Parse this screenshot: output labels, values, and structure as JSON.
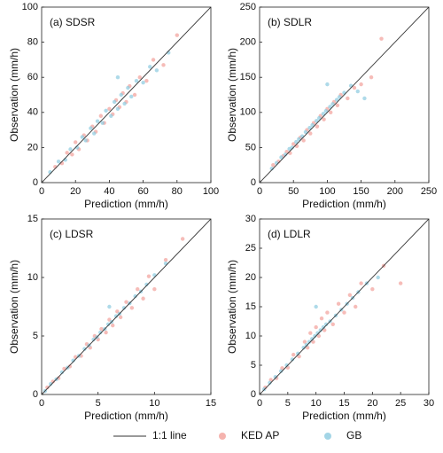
{
  "chart_data": [
    {
      "type": "scatter",
      "title": "(a) SDSR",
      "xlabel": "Prediction (mm/h)",
      "ylabel": "Observation (mm/h)",
      "xlim": [
        0,
        100
      ],
      "ylim": [
        0,
        100
      ],
      "xticks": [
        0,
        20,
        40,
        60,
        80,
        100
      ],
      "yticks": [
        0,
        20,
        40,
        60,
        80,
        100
      ],
      "reference_line": {
        "name": "1:1 line",
        "color": "#333333"
      },
      "series": [
        {
          "name": "KED AP",
          "color": "#f2a09a",
          "x": [
            8,
            12,
            15,
            18,
            20,
            22,
            25,
            27,
            30,
            32,
            35,
            37,
            40,
            42,
            44,
            46,
            48,
            50,
            52,
            55,
            58,
            62,
            66,
            72,
            80
          ],
          "y": [
            9,
            11,
            17,
            16,
            23,
            19,
            27,
            24,
            32,
            29,
            38,
            34,
            42,
            39,
            47,
            43,
            51,
            46,
            55,
            50,
            60,
            58,
            70,
            67,
            84
          ]
        },
        {
          "name": "GB",
          "color": "#8ccbe0",
          "x": [
            5,
            10,
            14,
            17,
            21,
            24,
            26,
            29,
            31,
            33,
            36,
            38,
            41,
            43,
            45,
            47,
            49,
            51,
            53,
            56,
            60,
            64,
            68,
            75,
            45
          ],
          "y": [
            6,
            12,
            13,
            19,
            20,
            26,
            24,
            31,
            28,
            35,
            34,
            41,
            38,
            46,
            42,
            50,
            45,
            54,
            49,
            58,
            57,
            66,
            64,
            74,
            60
          ]
        }
      ]
    },
    {
      "type": "scatter",
      "title": "(b) SDLR",
      "xlabel": "Prediction (mm/h)",
      "ylabel": "Observation (mm/h)",
      "xlim": [
        0,
        250
      ],
      "ylim": [
        0,
        250
      ],
      "xticks": [
        0,
        50,
        100,
        150,
        200,
        250
      ],
      "yticks": [
        0,
        50,
        100,
        150,
        200,
        250
      ],
      "series": [
        {
          "color": "#f2a09a",
          "x": [
            20,
            28,
            35,
            40,
            45,
            50,
            55,
            60,
            65,
            70,
            75,
            80,
            85,
            90,
            95,
            100,
            105,
            110,
            115,
            120,
            130,
            140,
            150,
            165,
            180
          ],
          "y": [
            25,
            30,
            38,
            44,
            42,
            55,
            52,
            64,
            60,
            75,
            70,
            85,
            80,
            95,
            90,
            105,
            100,
            115,
            110,
            125,
            120,
            135,
            140,
            150,
            205
          ]
        },
        {
          "color": "#8ccbe0",
          "x": [
            18,
            25,
            32,
            38,
            44,
            48,
            54,
            58,
            63,
            68,
            74,
            78,
            84,
            88,
            94,
            98,
            104,
            108,
            114,
            118,
            125,
            135,
            145,
            155,
            100
          ],
          "y": [
            20,
            28,
            36,
            40,
            48,
            50,
            58,
            62,
            66,
            72,
            78,
            82,
            88,
            92,
            98,
            102,
            108,
            112,
            118,
            122,
            128,
            138,
            130,
            120,
            140
          ]
        }
      ]
    },
    {
      "type": "scatter",
      "title": "(c) LDSR",
      "xlabel": "Prediction (mm/h)",
      "ylabel": "Observation (mm/h)",
      "xlim": [
        0,
        15
      ],
      "ylim": [
        0,
        15
      ],
      "xticks": [
        0,
        5,
        10,
        15
      ],
      "yticks": [
        0,
        5,
        10,
        15
      ],
      "series": [
        {
          "color": "#f2a09a",
          "x": [
            0.5,
            1,
            1.5,
            2,
            2.5,
            3,
            3.5,
            4,
            4.3,
            4.7,
            5,
            5.3,
            5.7,
            6,
            6.3,
            6.7,
            7,
            7.5,
            8,
            8.5,
            9,
            9.5,
            10,
            11,
            12.5
          ],
          "y": [
            0.6,
            1.1,
            1.4,
            2.2,
            2.4,
            3.2,
            3.3,
            4.3,
            4.0,
            5.0,
            4.7,
            5.6,
            5.3,
            6.4,
            5.9,
            7.1,
            6.6,
            7.9,
            7.4,
            9.0,
            8.2,
            10.1,
            9.0,
            11.5,
            13.3
          ]
        },
        {
          "color": "#8ccbe0",
          "x": [
            0.3,
            0.8,
            1.3,
            1.8,
            2.3,
            2.8,
            3.3,
            3.8,
            4.2,
            4.6,
            4.9,
            5.2,
            5.6,
            5.9,
            6.2,
            6.6,
            6.9,
            7.3,
            7.8,
            8.3,
            8.8,
            9.3,
            10,
            11,
            6
          ],
          "y": [
            0.3,
            0.9,
            1.3,
            1.9,
            2.3,
            2.9,
            3.3,
            3.9,
            4.2,
            4.7,
            4.9,
            5.3,
            5.6,
            6.0,
            6.2,
            6.7,
            6.9,
            7.4,
            7.8,
            8.4,
            8.8,
            9.4,
            10.2,
            11.2,
            7.5
          ]
        }
      ]
    },
    {
      "type": "scatter",
      "title": "(d) LDLR",
      "xlabel": "Prediction (mm/h)",
      "ylabel": "Observation (mm/h)",
      "xlim": [
        0,
        30
      ],
      "ylim": [
        0,
        30
      ],
      "xticks": [
        0,
        5,
        10,
        15,
        20,
        25,
        30
      ],
      "yticks": [
        0,
        5,
        10,
        15,
        20,
        25,
        30
      ],
      "series": [
        {
          "color": "#f2a09a",
          "x": [
            1,
            2,
            3,
            4,
            5,
            6,
            7,
            8,
            8.5,
            9,
            9.5,
            10,
            10.5,
            11,
            11.5,
            12,
            13,
            14,
            15,
            16,
            17,
            18,
            20,
            22,
            25
          ],
          "y": [
            1.2,
            2.5,
            2.8,
            4.5,
            4.6,
            6.8,
            6.5,
            9,
            8,
            10.5,
            9,
            11.5,
            10,
            13,
            11,
            14,
            12,
            15.5,
            14,
            17,
            15,
            19,
            18,
            22,
            19
          ]
        },
        {
          "color": "#8ccbe0",
          "x": [
            0.8,
            1.8,
            2.8,
            3.8,
            4.8,
            5.8,
            6.8,
            7.8,
            8.3,
            8.8,
            9.3,
            9.8,
            10.3,
            10.8,
            11.3,
            11.8,
            12.5,
            13.5,
            14.5,
            15.5,
            16.5,
            17.5,
            19,
            21,
            10
          ],
          "y": [
            0.9,
            2,
            3,
            4,
            5,
            6,
            7,
            8,
            8.5,
            9,
            9.5,
            10,
            10.5,
            11,
            11.5,
            12,
            12.5,
            13.5,
            14.5,
            15.5,
            16.5,
            17.5,
            19,
            20,
            15
          ]
        }
      ]
    }
  ]
}
